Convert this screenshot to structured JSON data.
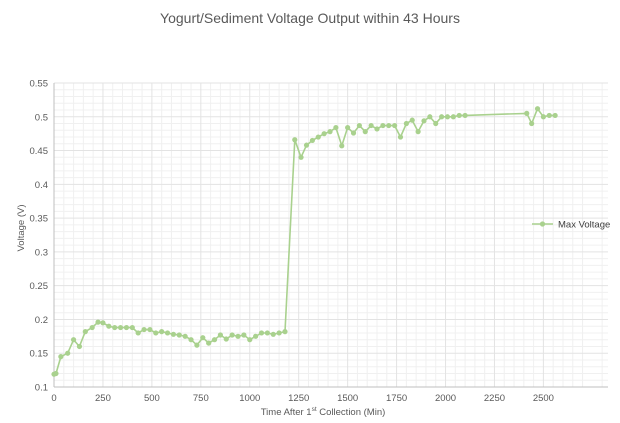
{
  "chart_data": {
    "type": "line",
    "title": "Yogurt/Sediment Voltage Output within 43 Hours",
    "xlabel_main": "Time After 1",
    "xlabel_sup": "st",
    "xlabel_tail": " Collection (Min)",
    "ylabel": "Voltage (V)",
    "xlim": [
      0,
      2830
    ],
    "ylim": [
      0.1,
      0.55
    ],
    "x_ticks": [
      0,
      250,
      500,
      750,
      1000,
      1250,
      1500,
      1750,
      2000,
      2250,
      2500
    ],
    "y_ticks": [
      0.1,
      0.15,
      0.2,
      0.25,
      0.3,
      0.35,
      0.4,
      0.45,
      0.5,
      0.55
    ],
    "grid": true,
    "legend_position": "right",
    "colors": {
      "series": "#a9d18e",
      "grid": "#e3e3e3",
      "axis": "#bfbfbf"
    },
    "series": [
      {
        "name": "Max Voltage",
        "x": [
          0,
          10,
          35,
          70,
          100,
          130,
          160,
          195,
          225,
          250,
          280,
          310,
          340,
          370,
          400,
          430,
          460,
          490,
          520,
          550,
          580,
          610,
          640,
          670,
          700,
          730,
          760,
          790,
          820,
          850,
          880,
          910,
          940,
          970,
          1000,
          1030,
          1060,
          1090,
          1120,
          1150,
          1180,
          1230,
          1262,
          1290,
          1320,
          1350,
          1380,
          1410,
          1440,
          1470,
          1500,
          1530,
          1560,
          1590,
          1620,
          1650,
          1680,
          1710,
          1740,
          1770,
          1800,
          1830,
          1860,
          1890,
          1920,
          1950,
          1980,
          2010,
          2040,
          2070,
          2100,
          2415,
          2440,
          2470,
          2500,
          2530,
          2560
        ],
        "values": [
          0.119,
          0.12,
          0.145,
          0.15,
          0.17,
          0.16,
          0.182,
          0.188,
          0.196,
          0.195,
          0.19,
          0.188,
          0.188,
          0.188,
          0.188,
          0.18,
          0.185,
          0.185,
          0.18,
          0.182,
          0.18,
          0.178,
          0.177,
          0.175,
          0.17,
          0.162,
          0.173,
          0.165,
          0.17,
          0.177,
          0.171,
          0.177,
          0.175,
          0.177,
          0.17,
          0.175,
          0.18,
          0.18,
          0.178,
          0.18,
          0.182,
          0.466,
          0.44,
          0.458,
          0.465,
          0.47,
          0.475,
          0.478,
          0.484,
          0.457,
          0.484,
          0.476,
          0.487,
          0.478,
          0.487,
          0.482,
          0.487,
          0.487,
          0.487,
          0.47,
          0.49,
          0.495,
          0.478,
          0.494,
          0.5,
          0.49,
          0.5,
          0.5,
          0.5,
          0.502,
          0.502,
          0.505,
          0.49,
          0.512,
          0.5,
          0.502,
          0.502
        ]
      }
    ]
  }
}
